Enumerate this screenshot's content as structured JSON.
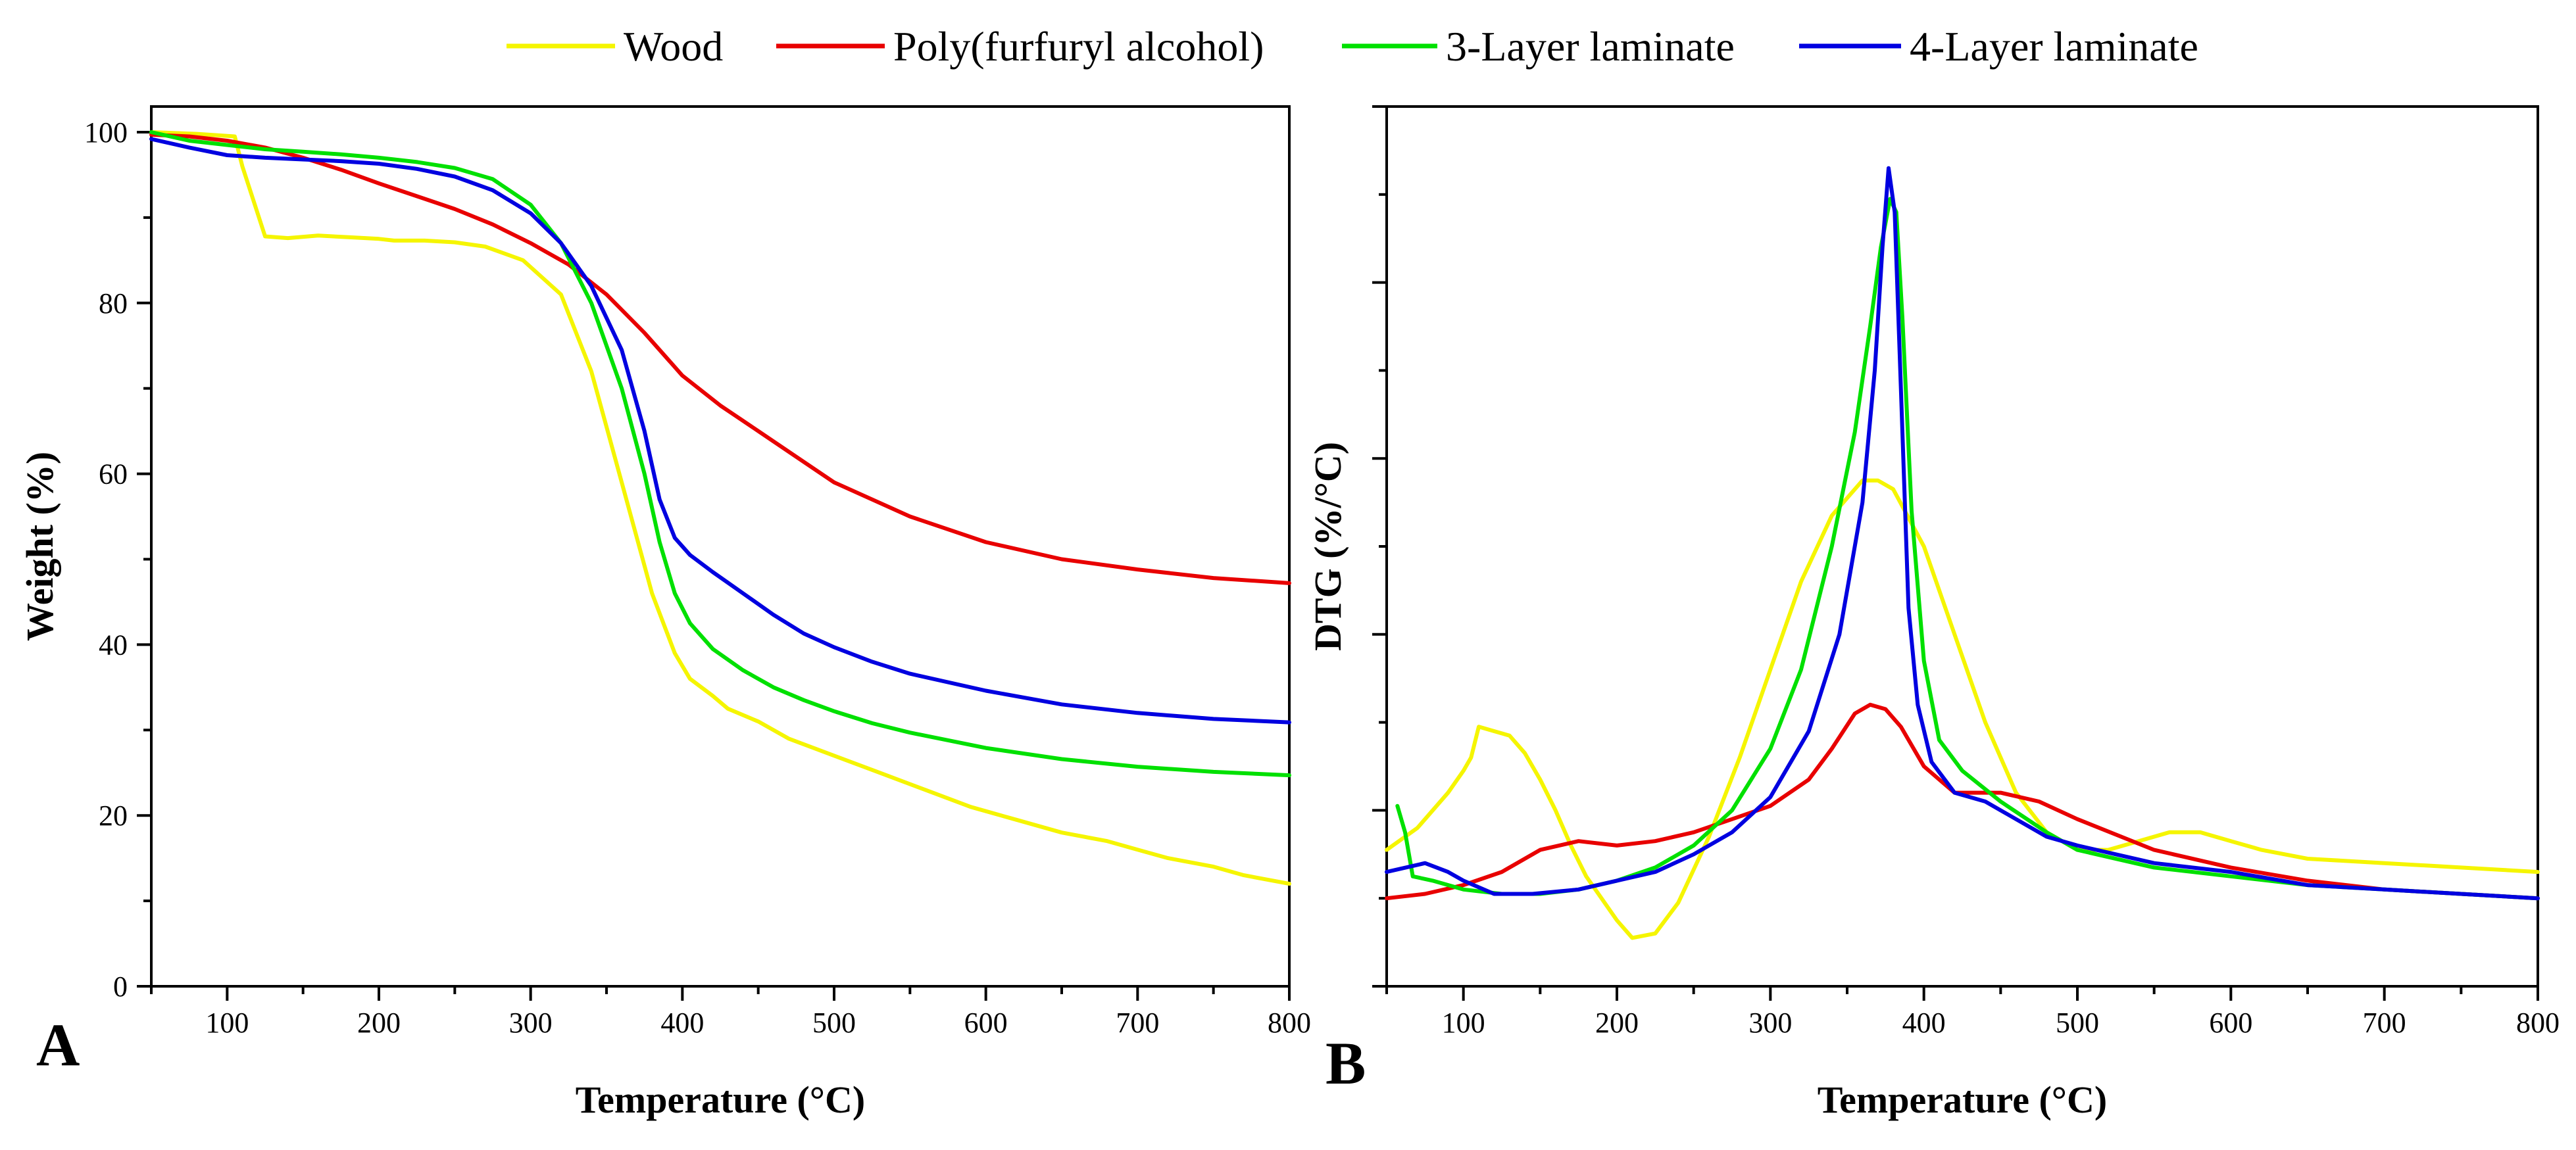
{
  "legend": {
    "entries": [
      {
        "label": "Wood",
        "color": "#f5f500"
      },
      {
        "label": "Poly(furfuryl alcohol)",
        "color": "#e80000"
      },
      {
        "label": "3-Layer laminate",
        "color": "#00e000"
      },
      {
        "label": "4-Layer laminate",
        "color": "#0000e0"
      }
    ]
  },
  "chart_data": [
    {
      "panel": "A",
      "type": "line",
      "title": "",
      "xlabel": "Temperature (°C)",
      "ylabel": "Weight (%)",
      "xlim": [
        50,
        800
      ],
      "ylim": [
        0,
        103
      ],
      "xticks": [
        100,
        200,
        300,
        400,
        500,
        600,
        700,
        800
      ],
      "yticks": [
        0,
        20,
        40,
        60,
        80,
        100
      ],
      "series": [
        {
          "name": "Wood",
          "color": "#f5f500",
          "x": [
            50,
            80,
            105,
            110,
            125,
            140,
            160,
            180,
            200,
            210,
            230,
            250,
            270,
            295,
            320,
            340,
            360,
            380,
            395,
            405,
            420,
            430,
            450,
            470,
            500,
            530,
            560,
            590,
            620,
            650,
            680,
            700,
            720,
            750,
            770,
            800
          ],
          "y": [
            100,
            99.8,
            99.5,
            96,
            87.8,
            87.6,
            87.9,
            87.7,
            87.5,
            87.3,
            87.3,
            87.1,
            86.6,
            85.0,
            81,
            72,
            59,
            46,
            39,
            36,
            34,
            32.5,
            31,
            29,
            27,
            25,
            23,
            21,
            19.5,
            18,
            17,
            16,
            15,
            14,
            13,
            12
          ]
        },
        {
          "name": "Poly(furfuryl alcohol)",
          "color": "#e80000",
          "x": [
            50,
            75,
            100,
            125,
            150,
            175,
            200,
            225,
            250,
            275,
            300,
            325,
            350,
            375,
            400,
            425,
            450,
            475,
            500,
            550,
            600,
            650,
            700,
            750,
            800
          ],
          "y": [
            99.7,
            99.5,
            99.0,
            98.2,
            97.0,
            95.6,
            94.0,
            92.5,
            91.0,
            89.2,
            87.0,
            84.5,
            81.0,
            76.5,
            71.5,
            68.0,
            65.0,
            62.0,
            59.0,
            55.0,
            52.0,
            50.0,
            48.8,
            47.8,
            47.2
          ]
        },
        {
          "name": "3-Layer laminate",
          "color": "#00e000",
          "x": [
            50,
            75,
            100,
            125,
            150,
            175,
            200,
            225,
            250,
            275,
            300,
            320,
            340,
            360,
            375,
            385,
            395,
            405,
            420,
            440,
            460,
            480,
            500,
            525,
            550,
            600,
            650,
            700,
            750,
            800
          ],
          "y": [
            100,
            99.0,
            98.5,
            98.0,
            97.7,
            97.4,
            97.0,
            96.5,
            95.8,
            94.5,
            91.5,
            87.0,
            80.0,
            70.0,
            60.0,
            52.0,
            46.0,
            42.5,
            39.5,
            37.0,
            35.0,
            33.5,
            32.2,
            30.8,
            29.7,
            27.9,
            26.6,
            25.7,
            25.1,
            24.7
          ]
        },
        {
          "name": "4-Layer laminate",
          "color": "#0000e0",
          "x": [
            50,
            75,
            100,
            125,
            150,
            175,
            200,
            225,
            250,
            275,
            300,
            320,
            340,
            360,
            375,
            385,
            395,
            405,
            420,
            440,
            460,
            480,
            500,
            525,
            550,
            600,
            650,
            700,
            750,
            800
          ],
          "y": [
            99.2,
            98.2,
            97.3,
            97.0,
            96.8,
            96.6,
            96.3,
            95.7,
            94.8,
            93.2,
            90.5,
            87.0,
            82.0,
            74.5,
            65.0,
            57.0,
            52.5,
            50.5,
            48.5,
            46.0,
            43.5,
            41.3,
            39.7,
            38.0,
            36.6,
            34.6,
            33.0,
            32.0,
            31.3,
            30.9
          ]
        }
      ]
    },
    {
      "panel": "B",
      "type": "line",
      "title": "",
      "xlabel": "Temperature (°C)",
      "ylabel": "DTG (%/°C)",
      "xlim": [
        50,
        800
      ],
      "ylim": [
        0,
        10
      ],
      "xticks": [
        100,
        200,
        300,
        400,
        500,
        600,
        700,
        800
      ],
      "yticks": [],
      "series": [
        {
          "name": "Wood",
          "color": "#f5f500",
          "x": [
            50,
            70,
            90,
            100,
            105,
            110,
            120,
            130,
            140,
            150,
            160,
            170,
            180,
            200,
            210,
            225,
            240,
            260,
            280,
            300,
            320,
            340,
            360,
            370,
            380,
            400,
            420,
            440,
            460,
            480,
            500,
            520,
            540,
            560,
            580,
            600,
            620,
            650,
            700,
            750,
            800
          ],
          "y": [
            1.55,
            1.8,
            2.2,
            2.45,
            2.6,
            2.95,
            2.9,
            2.85,
            2.65,
            2.35,
            2.0,
            1.6,
            1.25,
            0.75,
            0.55,
            0.6,
            0.95,
            1.7,
            2.6,
            3.6,
            4.6,
            5.35,
            5.75,
            5.75,
            5.65,
            5.0,
            4.0,
            3.0,
            2.2,
            1.75,
            1.55,
            1.55,
            1.65,
            1.75,
            1.75,
            1.65,
            1.55,
            1.45,
            1.4,
            1.35,
            1.3
          ]
        },
        {
          "name": "Poly(furfuryl alcohol)",
          "color": "#e80000",
          "x": [
            50,
            75,
            100,
            125,
            150,
            175,
            200,
            225,
            250,
            275,
            300,
            325,
            340,
            355,
            365,
            375,
            385,
            400,
            420,
            450,
            475,
            500,
            550,
            600,
            650,
            700,
            750,
            800
          ],
          "y": [
            1.0,
            1.05,
            1.15,
            1.3,
            1.55,
            1.65,
            1.6,
            1.65,
            1.75,
            1.9,
            2.05,
            2.35,
            2.7,
            3.1,
            3.2,
            3.15,
            2.95,
            2.5,
            2.2,
            2.2,
            2.1,
            1.9,
            1.55,
            1.35,
            1.2,
            1.1,
            1.05,
            1.0
          ]
        },
        {
          "name": "3-Layer laminate",
          "color": "#00e000",
          "x": [
            57,
            62,
            67,
            80,
            100,
            125,
            150,
            175,
            200,
            225,
            250,
            275,
            300,
            320,
            340,
            355,
            365,
            372,
            378,
            382,
            386,
            392,
            400,
            410,
            425,
            450,
            480,
            500,
            550,
            600,
            650,
            700,
            750,
            800
          ],
          "y": [
            2.05,
            1.75,
            1.25,
            1.2,
            1.1,
            1.05,
            1.05,
            1.1,
            1.2,
            1.35,
            1.6,
            2.0,
            2.7,
            3.6,
            5.0,
            6.3,
            7.5,
            8.4,
            8.95,
            8.8,
            7.6,
            5.4,
            3.7,
            2.8,
            2.45,
            2.1,
            1.75,
            1.55,
            1.35,
            1.25,
            1.15,
            1.1,
            1.05,
            1.0
          ]
        },
        {
          "name": "4-Layer laminate",
          "color": "#0000e0",
          "x": [
            50,
            75,
            90,
            100,
            120,
            145,
            175,
            200,
            225,
            250,
            275,
            300,
            325,
            345,
            360,
            368,
            373,
            377,
            381,
            385,
            390,
            396,
            405,
            420,
            440,
            460,
            480,
            500,
            550,
            600,
            650,
            700,
            750,
            800
          ],
          "y": [
            1.3,
            1.4,
            1.3,
            1.2,
            1.05,
            1.05,
            1.1,
            1.2,
            1.3,
            1.5,
            1.75,
            2.15,
            2.9,
            4.0,
            5.5,
            7.0,
            8.4,
            9.3,
            8.8,
            6.8,
            4.3,
            3.2,
            2.55,
            2.2,
            2.1,
            1.9,
            1.7,
            1.6,
            1.4,
            1.3,
            1.15,
            1.1,
            1.05,
            1.0
          ]
        }
      ]
    }
  ],
  "panels": {
    "A": {
      "label": "A",
      "xlabel": "Temperature (°C)",
      "ylabel": "Weight (%)"
    },
    "B": {
      "label": "B",
      "xlabel": "Temperature (°C)",
      "ylabel": "DTG (%/°C)"
    }
  }
}
